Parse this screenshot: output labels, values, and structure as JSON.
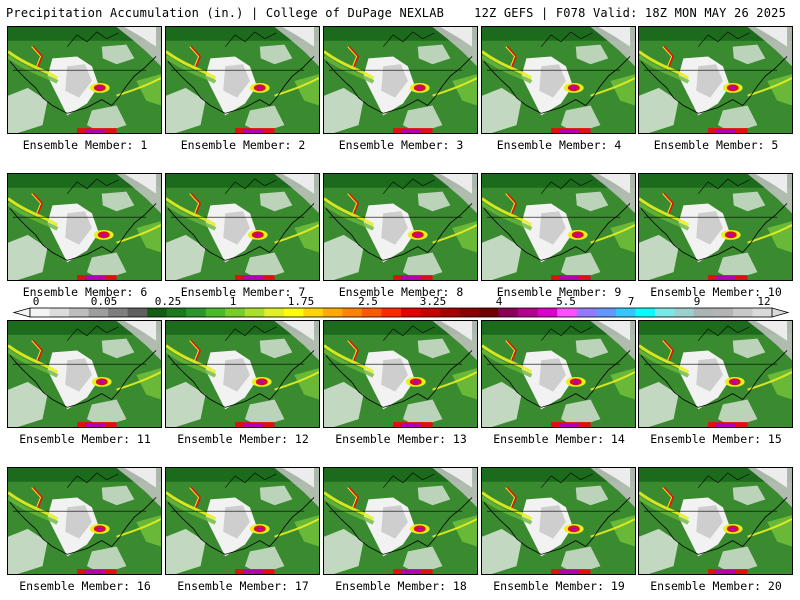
{
  "header": {
    "title_left": "Precipitation Accumulation (in.) | College of DuPage NEXLAB",
    "title_right": "12Z GEFS | F078 Valid: 18Z MON MAY 26 2025"
  },
  "colorbar": {
    "tick_labels": [
      "0",
      "0.05",
      "0.25",
      "1",
      "1.75",
      "2.5",
      "3.25",
      "4",
      "5.5",
      "7",
      "9",
      "12"
    ],
    "colors": [
      "#f4f4f4",
      "#dcdcdc",
      "#bdbdbd",
      "#9e9e9e",
      "#7e7e7e",
      "#5f5f5f",
      "#135c13",
      "#1c7a1c",
      "#2c962c",
      "#4cb82c",
      "#78cc2c",
      "#a9e02a",
      "#e0f020",
      "#ffff00",
      "#ffd400",
      "#ffaa00",
      "#ff8200",
      "#ff5a00",
      "#ff2800",
      "#e60000",
      "#c80000",
      "#a80000",
      "#880000",
      "#6e0000",
      "#880058",
      "#b4008c",
      "#dc00c8",
      "#ff50ff",
      "#9678ff",
      "#6496ff",
      "#32c8ff",
      "#00ffff",
      "#7be8e8",
      "#9ad0d0",
      "#aab4b4",
      "#b4b4b4",
      "#c8c8c8",
      "#dadada"
    ]
  },
  "ensemble_label_prefix": "Ensemble Member: ",
  "members": [
    {
      "id": "1"
    },
    {
      "id": "2"
    },
    {
      "id": "3"
    },
    {
      "id": "4"
    },
    {
      "id": "5"
    },
    {
      "id": "6"
    },
    {
      "id": "7"
    },
    {
      "id": "8"
    },
    {
      "id": "9"
    },
    {
      "id": "10"
    },
    {
      "id": "11"
    },
    {
      "id": "12"
    },
    {
      "id": "13"
    },
    {
      "id": "14"
    },
    {
      "id": "15"
    },
    {
      "id": "16"
    },
    {
      "id": "17"
    },
    {
      "id": "18"
    },
    {
      "id": "19"
    },
    {
      "id": "20"
    }
  ],
  "map_colors": {
    "green": "#3a8a30",
    "dark_green": "#1c6a1c",
    "light_green": "#6ab838",
    "dry_white": "#f2f2f2",
    "dry_gray": "#c4c4c4",
    "yellow": "#e8f020",
    "red": "#e01010",
    "purple": "#b400b4",
    "coast_black": "#000000"
  }
}
